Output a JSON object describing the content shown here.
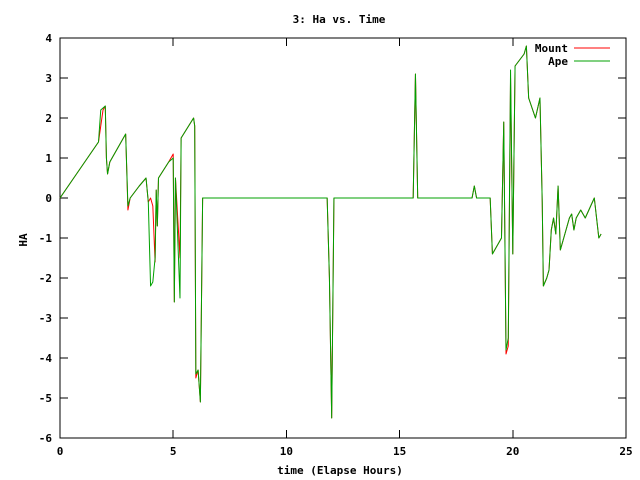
{
  "chart_data": {
    "type": "line",
    "title": "3: Ha vs. Time",
    "xlabel": "time (Elapse Hours)",
    "ylabel": "HA",
    "xlim": [
      0,
      25
    ],
    "ylim": [
      -6,
      4
    ],
    "xticks": [
      0,
      5,
      10,
      15,
      20,
      25
    ],
    "yticks": [
      -6,
      -5,
      -4,
      -3,
      -2,
      -1,
      0,
      1,
      2,
      3,
      4
    ],
    "grid": false,
    "legend_position": "top-right",
    "series": [
      {
        "name": "Mount",
        "color": "#ff0000",
        "points": [
          [
            0,
            0
          ],
          [
            1.7,
            1.4
          ],
          [
            1.9,
            2.2
          ],
          [
            2.0,
            2.3
          ],
          [
            2.05,
            1.0
          ],
          [
            2.1,
            0.6
          ],
          [
            2.2,
            0.9
          ],
          [
            2.8,
            1.5
          ],
          [
            2.9,
            1.6
          ],
          [
            3.0,
            -0.3
          ],
          [
            3.1,
            0.0
          ],
          [
            3.5,
            0.3
          ],
          [
            3.8,
            0.5
          ],
          [
            3.9,
            -0.1
          ],
          [
            4.0,
            0.0
          ],
          [
            4.1,
            -0.2
          ],
          [
            4.2,
            -1.6
          ],
          [
            4.25,
            0.2
          ],
          [
            4.3,
            -0.7
          ],
          [
            4.35,
            0.5
          ],
          [
            4.8,
            0.9
          ],
          [
            5.0,
            1.1
          ],
          [
            5.05,
            -2.6
          ],
          [
            5.1,
            0.5
          ],
          [
            5.3,
            -1.5
          ],
          [
            5.35,
            1.5
          ],
          [
            5.9,
            2.0
          ],
          [
            5.95,
            1.8
          ],
          [
            6.0,
            -4.5
          ],
          [
            6.1,
            -4.3
          ],
          [
            6.2,
            -5.1
          ],
          [
            6.3,
            0.0
          ],
          [
            11.8,
            0.0
          ],
          [
            11.9,
            -2.0
          ],
          [
            12.0,
            -5.5
          ],
          [
            12.1,
            0.0
          ],
          [
            15.6,
            0.0
          ],
          [
            15.7,
            3.1
          ],
          [
            15.8,
            0.0
          ],
          [
            18.2,
            0.0
          ],
          [
            18.3,
            0.3
          ],
          [
            18.4,
            0.0
          ],
          [
            19.0,
            0.0
          ],
          [
            19.1,
            -1.4
          ],
          [
            19.5,
            -1.0
          ],
          [
            19.6,
            1.9
          ],
          [
            19.7,
            -3.9
          ],
          [
            19.8,
            -3.7
          ],
          [
            19.9,
            3.0
          ],
          [
            20.0,
            -1.4
          ],
          [
            20.1,
            3.3
          ],
          [
            20.5,
            3.6
          ],
          [
            20.6,
            3.8
          ],
          [
            20.7,
            2.5
          ],
          [
            21.0,
            2.0
          ],
          [
            21.2,
            2.5
          ],
          [
            21.3,
            -0.1
          ],
          [
            21.35,
            -2.2
          ],
          [
            21.5,
            -2.0
          ],
          [
            21.6,
            -1.8
          ],
          [
            21.7,
            -0.8
          ],
          [
            21.8,
            -0.5
          ],
          [
            21.9,
            -0.9
          ],
          [
            22.0,
            0.3
          ],
          [
            22.1,
            -1.3
          ],
          [
            22.2,
            -1.1
          ],
          [
            22.5,
            -0.5
          ],
          [
            22.6,
            -0.4
          ],
          [
            22.7,
            -0.8
          ],
          [
            22.8,
            -0.5
          ],
          [
            23.0,
            -0.3
          ],
          [
            23.2,
            -0.5
          ],
          [
            23.6,
            0.0
          ],
          [
            23.8,
            -1.0
          ],
          [
            23.9,
            -0.9
          ]
        ]
      },
      {
        "name": "Ape",
        "color": "#00a000",
        "points": [
          [
            0,
            0
          ],
          [
            1.7,
            1.4
          ],
          [
            1.8,
            2.2
          ],
          [
            2.0,
            2.3
          ],
          [
            2.05,
            1.0
          ],
          [
            2.1,
            0.6
          ],
          [
            2.2,
            0.9
          ],
          [
            2.8,
            1.5
          ],
          [
            2.9,
            1.6
          ],
          [
            3.0,
            -0.2
          ],
          [
            3.1,
            0.0
          ],
          [
            3.5,
            0.3
          ],
          [
            3.8,
            0.5
          ],
          [
            3.9,
            -0.1
          ],
          [
            4.0,
            -2.2
          ],
          [
            4.1,
            -2.1
          ],
          [
            4.2,
            -1.5
          ],
          [
            4.25,
            0.2
          ],
          [
            4.3,
            -0.7
          ],
          [
            4.35,
            0.5
          ],
          [
            4.8,
            0.9
          ],
          [
            5.0,
            1.0
          ],
          [
            5.05,
            -2.6
          ],
          [
            5.1,
            0.5
          ],
          [
            5.3,
            -2.5
          ],
          [
            5.35,
            1.5
          ],
          [
            5.9,
            2.0
          ],
          [
            5.95,
            1.8
          ],
          [
            6.0,
            -4.4
          ],
          [
            6.1,
            -4.3
          ],
          [
            6.2,
            -5.1
          ],
          [
            6.3,
            0.0
          ],
          [
            11.8,
            0.0
          ],
          [
            11.9,
            -2.0
          ],
          [
            12.0,
            -5.5
          ],
          [
            12.1,
            0.0
          ],
          [
            15.6,
            0.0
          ],
          [
            15.7,
            3.1
          ],
          [
            15.8,
            0.0
          ],
          [
            18.2,
            0.0
          ],
          [
            18.3,
            0.3
          ],
          [
            18.4,
            0.0
          ],
          [
            19.0,
            0.0
          ],
          [
            19.1,
            -1.4
          ],
          [
            19.5,
            -1.0
          ],
          [
            19.6,
            1.9
          ],
          [
            19.7,
            -3.8
          ],
          [
            19.8,
            -3.5
          ],
          [
            19.9,
            3.2
          ],
          [
            20.0,
            -1.4
          ],
          [
            20.1,
            3.3
          ],
          [
            20.5,
            3.6
          ],
          [
            20.6,
            3.8
          ],
          [
            20.7,
            2.5
          ],
          [
            21.0,
            2.0
          ],
          [
            21.2,
            2.5
          ],
          [
            21.3,
            -0.1
          ],
          [
            21.35,
            -2.2
          ],
          [
            21.5,
            -2.0
          ],
          [
            21.6,
            -1.8
          ],
          [
            21.7,
            -0.8
          ],
          [
            21.8,
            -0.5
          ],
          [
            21.9,
            -0.9
          ],
          [
            22.0,
            0.3
          ],
          [
            22.1,
            -1.3
          ],
          [
            22.2,
            -1.1
          ],
          [
            22.5,
            -0.5
          ],
          [
            22.6,
            -0.4
          ],
          [
            22.7,
            -0.8
          ],
          [
            22.8,
            -0.5
          ],
          [
            23.0,
            -0.3
          ],
          [
            23.2,
            -0.5
          ],
          [
            23.6,
            0.0
          ],
          [
            23.8,
            -1.0
          ],
          [
            23.9,
            -0.9
          ]
        ]
      }
    ]
  }
}
